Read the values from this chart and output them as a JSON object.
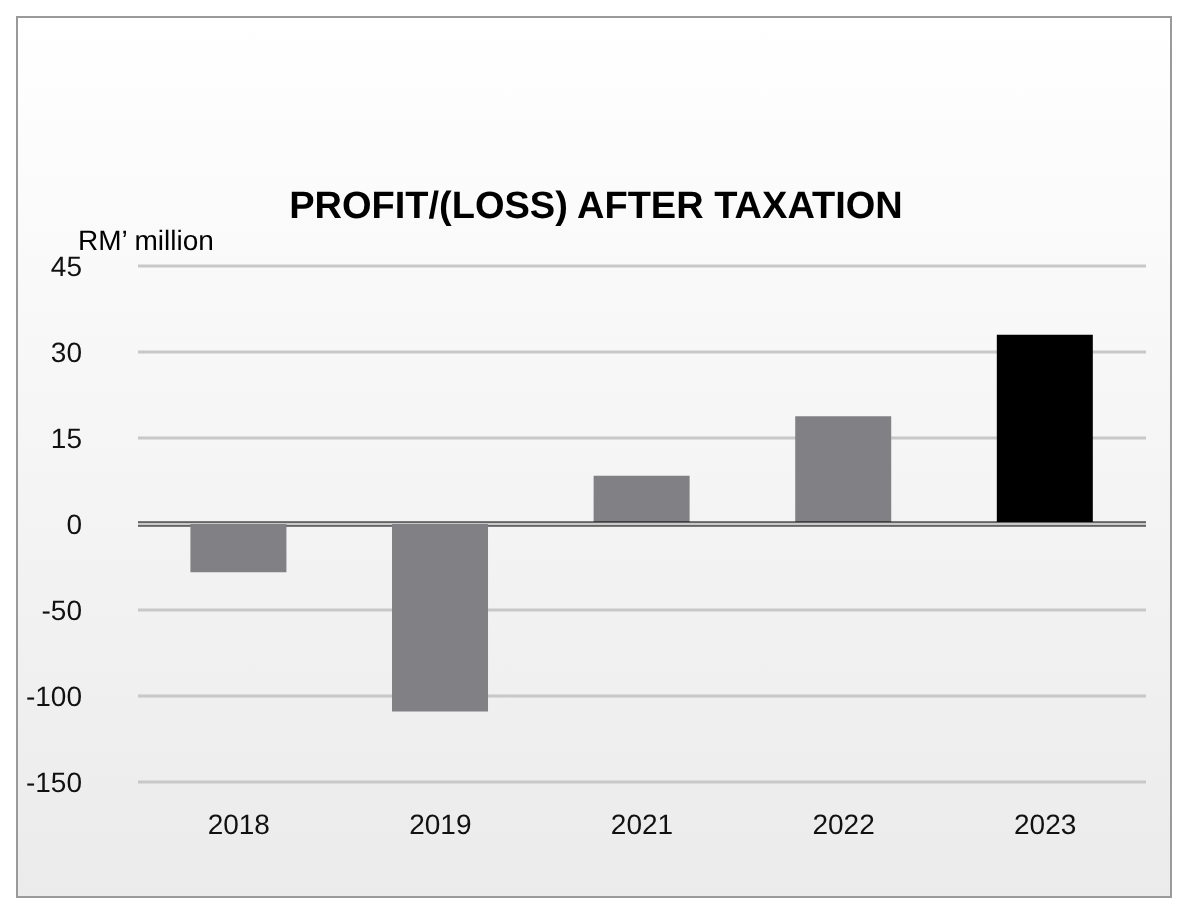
{
  "chart_data": [
    {
      "type": "bar",
      "title": "PROFIT/(LOSS) AFTER TAXATION",
      "ylabel": "RM’ million",
      "categories": [
        "2018",
        "2019",
        "2021",
        "2022",
        "2023"
      ],
      "values": [
        null,
        null,
        8.4,
        18.8,
        33
      ],
      "colors": [
        "#818185",
        "#818185",
        "#818185",
        "#818185",
        "#000000"
      ],
      "ylim": [
        0,
        45
      ],
      "yticks": [
        45,
        30,
        15,
        0
      ],
      "grid": "y",
      "tick_labels": "y"
    },
    {
      "type": "bar",
      "categories": [
        "2018",
        "2019",
        "2021",
        "2022",
        "2023"
      ],
      "values": [
        -28,
        -109,
        null,
        null,
        null
      ],
      "colors": [
        "#818185",
        "#818185",
        "#818185",
        "#818185",
        "#000000"
      ],
      "ylim": [
        -150,
        0
      ],
      "yticks": [
        -50,
        -100,
        -150
      ],
      "grid": "y"
    }
  ]
}
